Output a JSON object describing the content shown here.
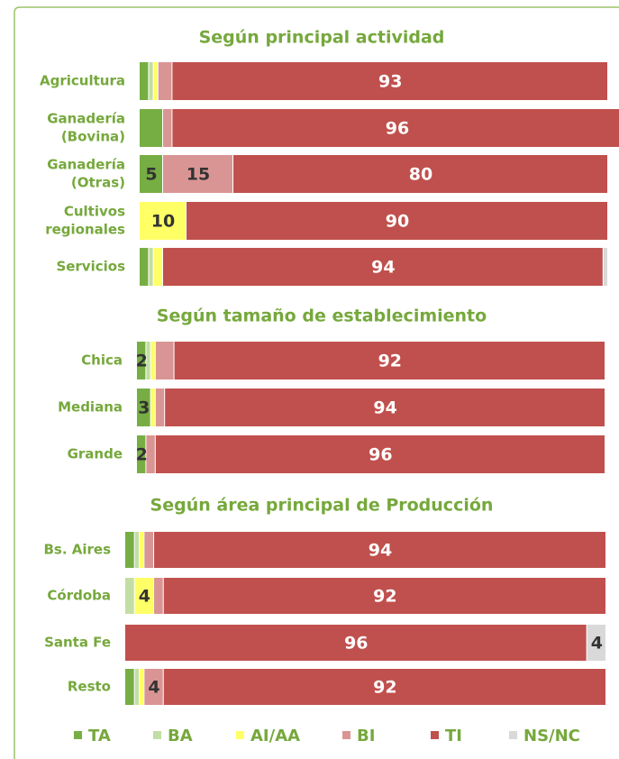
{
  "chart_data": {
    "type": "bar",
    "orientation": "horizontal",
    "stacked": true,
    "xlim": [
      0,
      100
    ],
    "series": [
      {
        "name": "TA",
        "color": "#77ae43",
        "label_color": "#333333"
      },
      {
        "name": "BA",
        "color": "#c3dea4",
        "label_color": "#333333"
      },
      {
        "name": "AI/AA",
        "color": "#ffff66",
        "label_color": "#333333"
      },
      {
        "name": "BI",
        "color": "#d99594",
        "label_color": "#333333"
      },
      {
        "name": "TI",
        "color": "#c0504d",
        "label_color": "#ffffff"
      },
      {
        "name": "NS/NC",
        "color": "#d9d9d9",
        "label_color": "#333333"
      }
    ],
    "panels": [
      {
        "title": "Según principal actividad",
        "categories": [
          [
            "Agricultura"
          ],
          [
            "Ganadería",
            "(Bovina)"
          ],
          [
            "Ganadería",
            "(Otras)"
          ],
          [
            "Cultivos",
            "regionales"
          ],
          [
            "Servicios"
          ]
        ],
        "values": [
          [
            2,
            5,
            5,
            0,
            2
          ],
          [
            1,
            0,
            0,
            0,
            1
          ],
          [
            1,
            0,
            0,
            10,
            2
          ],
          [
            3,
            2,
            15,
            0,
            0
          ],
          [
            93,
            96,
            80,
            90,
            94
          ],
          [
            0,
            0,
            0,
            0,
            1
          ]
        ],
        "value_labels": [
          [
            null,
            null,
            "5",
            null,
            null
          ],
          [
            null,
            null,
            null,
            null,
            null
          ],
          [
            null,
            null,
            null,
            "10",
            null
          ],
          [
            null,
            null,
            "15",
            null,
            null
          ],
          [
            "93",
            "96",
            "80",
            "90",
            "94"
          ],
          [
            null,
            null,
            null,
            null,
            null
          ]
        ]
      },
      {
        "title": "Según tamaño de establecimiento",
        "categories": [
          [
            "Chica"
          ],
          [
            "Mediana"
          ],
          [
            "Grande"
          ]
        ],
        "values": [
          [
            2,
            3,
            2
          ],
          [
            1,
            0,
            0
          ],
          [
            1,
            1,
            0
          ],
          [
            4,
            2,
            2
          ],
          [
            92,
            94,
            96
          ],
          [
            0,
            0,
            0
          ]
        ],
        "value_labels": [
          [
            "2",
            "3",
            "2"
          ],
          [
            null,
            null,
            null
          ],
          [
            null,
            null,
            null
          ],
          [
            null,
            null,
            null
          ],
          [
            "92",
            "94",
            "96"
          ],
          [
            null,
            null,
            null
          ]
        ]
      },
      {
        "title": "Según área principal de Producción",
        "categories": [
          [
            "Bs. Aires"
          ],
          [
            "Córdoba"
          ],
          [
            "Santa Fe"
          ],
          [
            "Resto"
          ]
        ],
        "values": [
          [
            2,
            0,
            0,
            2
          ],
          [
            1,
            2,
            0,
            1
          ],
          [
            1,
            4,
            0,
            1
          ],
          [
            2,
            2,
            0,
            4
          ],
          [
            94,
            92,
            96,
            92
          ],
          [
            0,
            0,
            4,
            0
          ]
        ],
        "value_labels": [
          [
            null,
            null,
            null,
            null
          ],
          [
            null,
            null,
            null,
            null
          ],
          [
            null,
            "4",
            null,
            null
          ],
          [
            null,
            null,
            null,
            "4"
          ],
          [
            "94",
            "92",
            "96",
            "92"
          ],
          [
            null,
            null,
            "4",
            null
          ]
        ]
      }
    ]
  }
}
